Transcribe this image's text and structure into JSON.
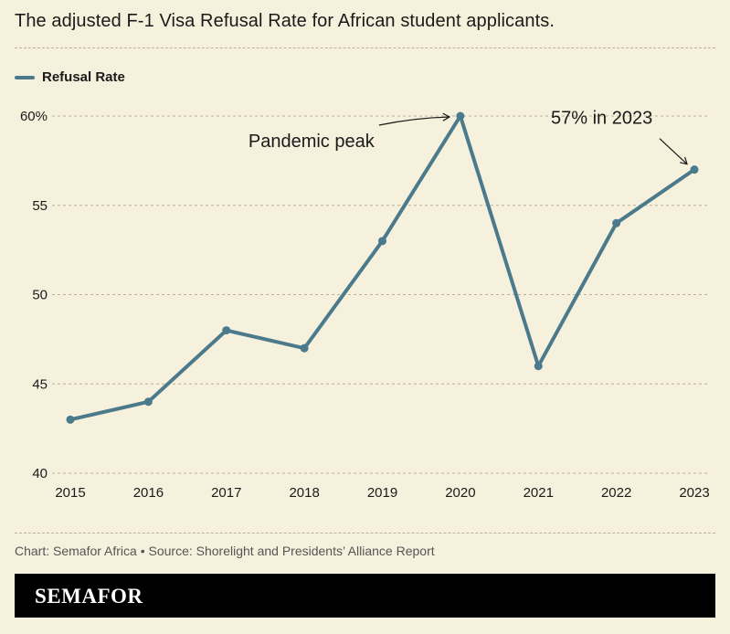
{
  "title": "The adjusted F-1 Visa Refusal Rate for African student applicants.",
  "footer": "Chart: Semafor Africa • Source: Shorelight and Presidents’ Alliance Report",
  "brand": "SEMAFOR",
  "colors": {
    "line": "#4a7a8c",
    "background": "#f6f1dc",
    "grid": "#b9b39c"
  },
  "chart_data": {
    "type": "line",
    "x": [
      "2015",
      "2016",
      "2017",
      "2018",
      "2019",
      "2020",
      "2021",
      "2022",
      "2023"
    ],
    "series": [
      {
        "name": "Refusal Rate",
        "values": [
          43,
          44,
          48,
          47,
          53,
          60,
          46,
          54,
          57
        ]
      }
    ],
    "yticks": [
      40,
      45,
      50,
      55,
      60
    ],
    "ytick_labels": [
      "40",
      "45",
      "50",
      "55",
      "60%"
    ],
    "ylim": [
      40,
      60
    ],
    "grid": true,
    "legend": "top-left",
    "annotations": [
      {
        "text": "Pandemic peak",
        "x": "2020",
        "y": 60
      },
      {
        "text": "57% in 2023",
        "x": "2023",
        "y": 57
      }
    ]
  }
}
